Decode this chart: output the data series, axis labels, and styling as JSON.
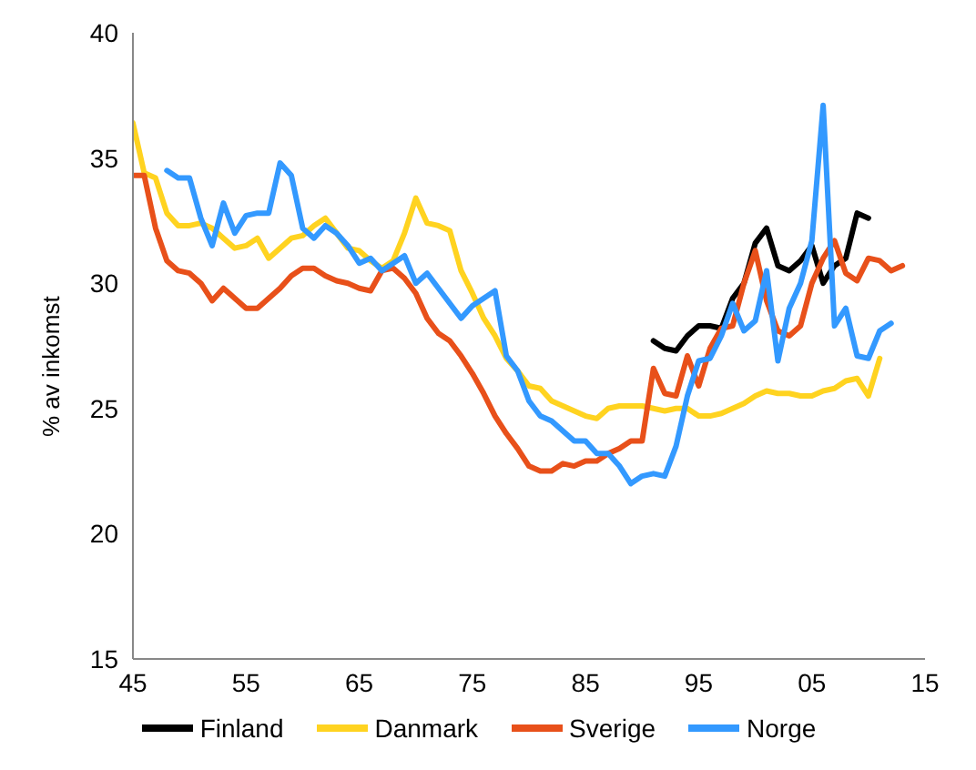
{
  "chart_data": {
    "type": "line",
    "ylabel": "% av inkomst",
    "xlim": [
      1945,
      2015
    ],
    "xticks": [
      {
        "value": 1945,
        "label": "45"
      },
      {
        "value": 1955,
        "label": "55"
      },
      {
        "value": 1965,
        "label": "65"
      },
      {
        "value": 1975,
        "label": "75"
      },
      {
        "value": 1985,
        "label": "85"
      },
      {
        "value": 1995,
        "label": "95"
      },
      {
        "value": 2005,
        "label": "05"
      },
      {
        "value": 2015,
        "label": "15"
      }
    ],
    "ylim": [
      15,
      40
    ],
    "yticks": [
      15,
      20,
      25,
      30,
      35,
      40
    ],
    "grid": false,
    "legend": "bottom",
    "marker": "none",
    "line_style": "solid",
    "series": [
      {
        "name": "Finland",
        "color": "#000000",
        "x": [
          1991,
          1992,
          1993,
          1994,
          1995,
          1996,
          1997,
          1998,
          1999,
          2000,
          2001,
          2002,
          2003,
          2004,
          2005,
          2006,
          2007,
          2008,
          2009,
          2010
        ],
        "values": [
          27.7,
          27.4,
          27.3,
          27.9,
          28.3,
          28.3,
          28.2,
          29.4,
          30.0,
          31.6,
          32.2,
          30.7,
          30.5,
          30.9,
          31.5,
          30.0,
          30.7,
          31.0,
          32.8,
          32.6
        ]
      },
      {
        "name": "Danmark",
        "color": "#ffd320",
        "x": [
          1945,
          1946,
          1947,
          1948,
          1949,
          1950,
          1951,
          1952,
          1953,
          1954,
          1955,
          1956,
          1957,
          1958,
          1959,
          1960,
          1961,
          1962,
          1963,
          1964,
          1965,
          1966,
          1967,
          1968,
          1969,
          1970,
          1971,
          1972,
          1973,
          1974,
          1975,
          1976,
          1977,
          1978,
          1979,
          1980,
          1981,
          1982,
          1983,
          1984,
          1985,
          1986,
          1987,
          1988,
          1989,
          1990,
          1991,
          1992,
          1993,
          1994,
          1995,
          1996,
          1997,
          1998,
          1999,
          2000,
          2001,
          2002,
          2003,
          2004,
          2005,
          2006,
          2007,
          2008,
          2009,
          2010,
          2011
        ],
        "values": [
          36.4,
          34.4,
          34.2,
          32.8,
          32.3,
          32.3,
          32.4,
          32.2,
          31.8,
          31.4,
          31.5,
          31.8,
          31.0,
          31.4,
          31.8,
          31.9,
          32.3,
          32.6,
          32.0,
          31.4,
          31.3,
          30.9,
          30.6,
          30.9,
          32.0,
          33.4,
          32.4,
          32.3,
          32.1,
          30.5,
          29.6,
          28.6,
          27.9,
          27.0,
          26.5,
          25.9,
          25.8,
          25.3,
          25.1,
          24.9,
          24.7,
          24.6,
          25.0,
          25.1,
          25.1,
          25.1,
          25.0,
          24.9,
          25.0,
          25.0,
          24.7,
          24.7,
          24.8,
          25.0,
          25.2,
          25.5,
          25.7,
          25.6,
          25.6,
          25.5,
          25.5,
          25.7,
          25.8,
          26.1,
          26.2,
          25.5,
          27.0
        ]
      },
      {
        "name": "Sverige",
        "color": "#e8501a",
        "x": [
          1945,
          1946,
          1947,
          1948,
          1949,
          1950,
          1951,
          1952,
          1953,
          1954,
          1955,
          1956,
          1957,
          1958,
          1959,
          1960,
          1961,
          1962,
          1963,
          1964,
          1965,
          1966,
          1967,
          1968,
          1969,
          1970,
          1971,
          1972,
          1973,
          1974,
          1975,
          1976,
          1977,
          1978,
          1979,
          1980,
          1981,
          1982,
          1983,
          1984,
          1985,
          1986,
          1987,
          1988,
          1989,
          1990,
          1991,
          1992,
          1993,
          1994,
          1995,
          1996,
          1997,
          1998,
          1999,
          2000,
          2001,
          2002,
          2003,
          2004,
          2005,
          2006,
          2007,
          2008,
          2009,
          2010,
          2011,
          2012,
          2013
        ],
        "values": [
          34.3,
          34.3,
          32.2,
          30.9,
          30.5,
          30.4,
          30.0,
          29.3,
          29.8,
          29.4,
          29.0,
          29.0,
          29.4,
          29.8,
          30.3,
          30.6,
          30.6,
          30.3,
          30.1,
          30.0,
          29.8,
          29.7,
          30.5,
          30.6,
          30.2,
          29.6,
          28.6,
          28.0,
          27.7,
          27.1,
          26.4,
          25.6,
          24.7,
          24.0,
          23.4,
          22.7,
          22.5,
          22.5,
          22.8,
          22.7,
          22.9,
          22.9,
          23.2,
          23.4,
          23.7,
          23.7,
          26.6,
          25.6,
          25.5,
          27.1,
          25.9,
          27.4,
          28.2,
          28.3,
          30.0,
          31.3,
          29.3,
          28.1,
          27.9,
          28.3,
          30.0,
          31.0,
          31.7,
          30.4,
          30.1,
          31.0,
          30.9,
          30.5,
          30.7
        ]
      },
      {
        "name": "Norge",
        "color": "#3399ff",
        "x": [
          1948,
          1949,
          1950,
          1951,
          1952,
          1953,
          1954,
          1955,
          1956,
          1957,
          1958,
          1959,
          1960,
          1961,
          1962,
          1963,
          1964,
          1965,
          1966,
          1967,
          1968,
          1969,
          1970,
          1971,
          1972,
          1973,
          1974,
          1975,
          1976,
          1977,
          1978,
          1979,
          1980,
          1981,
          1982,
          1983,
          1984,
          1985,
          1986,
          1987,
          1988,
          1989,
          1990,
          1991,
          1992,
          1993,
          1994,
          1995,
          1996,
          1997,
          1998,
          1999,
          2000,
          2001,
          2002,
          2003,
          2004,
          2005,
          2006,
          2007,
          2008,
          2009,
          2010,
          2011,
          2012
        ],
        "values": [
          34.5,
          34.2,
          34.2,
          32.6,
          31.5,
          33.2,
          32.0,
          32.7,
          32.8,
          32.8,
          34.8,
          34.3,
          32.2,
          31.8,
          32.3,
          32.0,
          31.5,
          30.8,
          31.0,
          30.5,
          30.8,
          31.1,
          30.0,
          30.4,
          29.8,
          29.2,
          28.6,
          29.1,
          29.4,
          29.7,
          27.1,
          26.5,
          25.3,
          24.7,
          24.5,
          24.1,
          23.7,
          23.7,
          23.2,
          23.2,
          22.7,
          22.0,
          22.3,
          22.4,
          22.3,
          23.5,
          25.5,
          26.9,
          27.0,
          27.9,
          29.2,
          28.1,
          28.5,
          30.5,
          26.9,
          29.0,
          30.0,
          31.7,
          37.1,
          28.3,
          29.0,
          27.1,
          27.0,
          28.1,
          28.4
        ]
      }
    ]
  }
}
